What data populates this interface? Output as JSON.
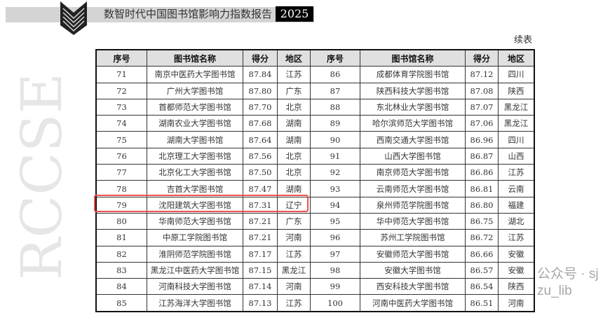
{
  "header": {
    "title": "数智时代中国图书馆影响力指数报告",
    "year": "2025"
  },
  "continued_label": "续表",
  "columns": [
    "序号",
    "图书馆名称",
    "得分",
    "地区",
    "序号",
    "图书馆名称",
    "得分",
    "地区"
  ],
  "rows": [
    [
      [
        "71",
        "南京中医药大学图书馆",
        "87.84",
        "江苏"
      ],
      [
        "86",
        "成都体育学院图书馆",
        "87.12",
        "四川"
      ]
    ],
    [
      [
        "72",
        "广州大学图书馆",
        "87.80",
        "广东"
      ],
      [
        "87",
        "陕西科技大学图书馆",
        "87.08",
        "陕西"
      ]
    ],
    [
      [
        "73",
        "首都师范大学图书馆",
        "87.70",
        "北京"
      ],
      [
        "88",
        "东北林业大学图书馆",
        "87.07",
        "黑龙江"
      ]
    ],
    [
      [
        "74",
        "湖南农业大学图书馆",
        "87.68",
        "湖南"
      ],
      [
        "89",
        "哈尔滨师范大学图书馆",
        "87.06",
        "黑龙江"
      ]
    ],
    [
      [
        "75",
        "湖南大学图书馆",
        "87.64",
        "湖南"
      ],
      [
        "90",
        "西南交通大学图书馆",
        "86.96",
        "四川"
      ]
    ],
    [
      [
        "76",
        "北京理工大学图书馆",
        "87.56",
        "北京"
      ],
      [
        "91",
        "山西大学图书馆",
        "86.87",
        "山西"
      ]
    ],
    [
      [
        "77",
        "北京化工大学图书馆",
        "87.50",
        "北京"
      ],
      [
        "92",
        "南京师范大学图书馆",
        "86.86",
        "江苏"
      ]
    ],
    [
      [
        "78",
        "吉首大学图书馆",
        "87.47",
        "湖南"
      ],
      [
        "93",
        "云南师范大学图书馆",
        "86.81",
        "云南"
      ]
    ],
    [
      [
        "79",
        "沈阳建筑大学图书馆",
        "87.31",
        "辽宁"
      ],
      [
        "94",
        "泉州师范学院图书馆",
        "86.80",
        "福建"
      ]
    ],
    [
      [
        "80",
        "华南师范大学图书馆",
        "87.21",
        "广东"
      ],
      [
        "95",
        "华中师范大学图书馆",
        "86.75",
        "湖北"
      ]
    ],
    [
      [
        "81",
        "中原工学院图书馆",
        "87.21",
        "河南"
      ],
      [
        "96",
        "苏州工学院图书馆",
        "86.72",
        "江苏"
      ]
    ],
    [
      [
        "82",
        "淮阴师范学院图书馆",
        "87.17",
        "江苏"
      ],
      [
        "97",
        "安徽师范大学图书馆",
        "86.66",
        "安徽"
      ]
    ],
    [
      [
        "83",
        "黑龙江中医药大学图书馆",
        "87.15",
        "黑龙江"
      ],
      [
        "98",
        "安徽大学图书馆",
        "86.57",
        "安徽"
      ]
    ],
    [
      [
        "84",
        "河南科技大学图书馆",
        "87.14",
        "河南"
      ],
      [
        "99",
        "西安科技大学图书馆",
        "86.54",
        "陕西"
      ]
    ],
    [
      [
        "85",
        "江苏海洋大学图书馆",
        "87.13",
        "江苏"
      ],
      [
        "100",
        "河南中医药大学图书馆",
        "86.51",
        "河南"
      ]
    ]
  ],
  "highlight_color": "#f05050",
  "watermark": "RCCSE",
  "wechat_watermark": "公众号 · sjzu_lib"
}
